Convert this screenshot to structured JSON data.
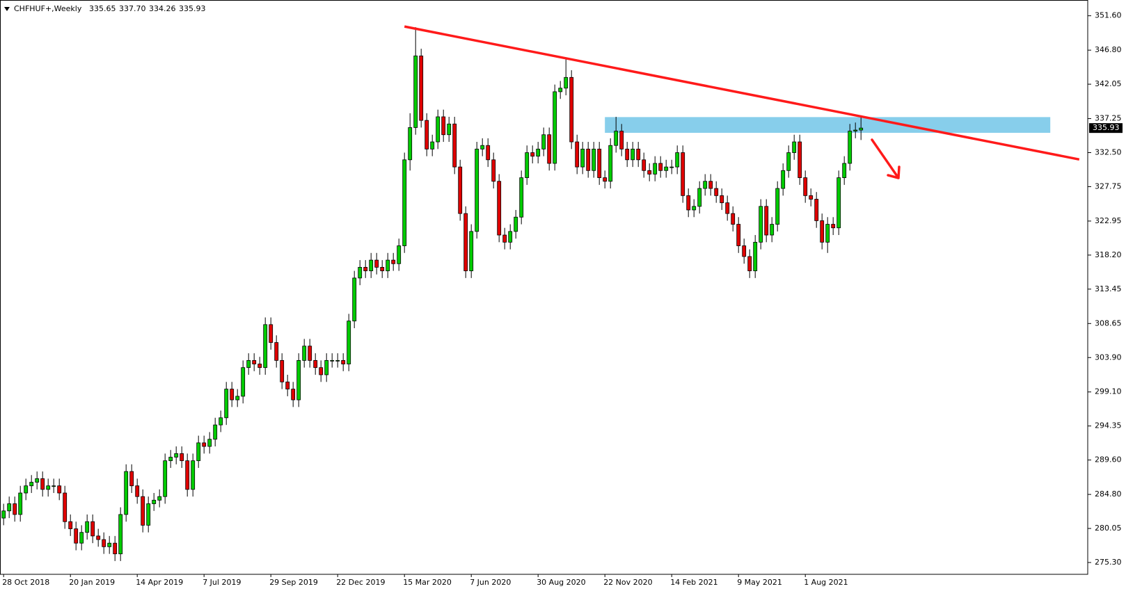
{
  "chart_data": {
    "type": "candlestick",
    "symbol": "CHFHUF+,Weekly",
    "header_values": [
      "335.65",
      "337.70",
      "334.26",
      "335.93"
    ],
    "categories": [
      "28 Oct 2018",
      null,
      null,
      null,
      null,
      null,
      null,
      null,
      null,
      null,
      null,
      null,
      "20 Jan 2019",
      null,
      null,
      null,
      null,
      null,
      null,
      null,
      null,
      null,
      null,
      null,
      "14 Apr 2019",
      null,
      null,
      null,
      null,
      null,
      null,
      null,
      null,
      null,
      null,
      null,
      "7 Jul 2019",
      null,
      null,
      null,
      null,
      null,
      null,
      null,
      null,
      null,
      null,
      null,
      "29 Sep 2019",
      null,
      null,
      null,
      null,
      null,
      null,
      null,
      null,
      null,
      null,
      null,
      "22 Dec 2019",
      null,
      null,
      null,
      null,
      null,
      null,
      null,
      null,
      null,
      null,
      null,
      "15 Mar 2020",
      null,
      null,
      null,
      null,
      null,
      null,
      null,
      null,
      null,
      null,
      null,
      "7 Jun 2020",
      null,
      null,
      null,
      null,
      null,
      null,
      null,
      null,
      null,
      null,
      null,
      "30 Aug 2020",
      null,
      null,
      null,
      null,
      null,
      null,
      null,
      null,
      null,
      null,
      null,
      "22 Nov 2020",
      null,
      null,
      null,
      null,
      null,
      null,
      null,
      null,
      null,
      null,
      null,
      "14 Feb 2021",
      null,
      null,
      null,
      null,
      null,
      null,
      null,
      null,
      null,
      null,
      null,
      "9 May 2021",
      null,
      null,
      null,
      null,
      null,
      null,
      null,
      null,
      null,
      null,
      null,
      "1 Aug 2021",
      null,
      null,
      null,
      null,
      null,
      null,
      null,
      null,
      null,
      null
    ],
    "open": [
      281.5,
      282.5,
      283.5,
      282.0,
      285.0,
      286.0,
      286.5,
      287.0,
      285.5,
      286.0,
      286.0,
      285.0,
      281.0,
      280.0,
      278.0,
      279.5,
      281.0,
      279.0,
      278.5,
      277.5,
      278.0,
      276.5,
      282.0,
      288.0,
      286.0,
      284.5,
      280.5,
      283.5,
      284.0,
      284.5,
      289.5,
      290.0,
      290.5,
      289.5,
      285.5,
      289.5,
      292.0,
      291.5,
      292.5,
      294.5,
      295.5,
      299.5,
      298.0,
      298.5,
      302.5,
      303.5,
      303.0,
      302.5,
      308.5,
      306.0,
      303.5,
      300.5,
      299.5,
      298.0,
      303.5,
      305.5,
      303.5,
      302.5,
      301.5,
      303.5,
      303.5,
      303.5,
      303.0,
      309.0,
      315.0,
      316.5,
      316.0,
      317.5,
      316.5,
      316.0,
      317.5,
      317.0,
      319.5,
      331.5,
      336.0,
      346.0,
      337.0,
      333.0,
      334.0,
      337.5,
      335.0,
      336.5,
      330.5,
      324.0,
      316.0,
      321.5,
      333.0,
      333.5,
      331.5,
      328.5,
      321.0,
      320.0,
      321.5,
      323.5,
      329.0,
      332.5,
      332.0,
      333.0,
      335.0,
      331.0,
      341.0,
      341.5,
      343.0,
      334.0,
      330.5,
      333.0,
      330.0,
      333.0,
      329.0,
      328.5,
      333.5,
      335.5,
      333.0,
      331.5,
      333.0,
      331.5,
      330.0,
      329.5,
      331.0,
      330.0,
      330.5,
      330.5,
      332.5,
      326.5,
      324.5,
      325.0,
      327.5,
      328.5,
      327.5,
      326.5,
      325.5,
      324.0,
      322.5,
      319.5,
      318.0,
      316.0,
      320.0,
      325.0,
      321.0,
      322.5,
      327.5,
      330.0,
      332.5,
      334.0,
      329.0,
      326.5,
      326.0,
      323.0,
      320.0,
      322.5,
      322.0,
      329.0,
      331.0,
      335.5,
      335.65
    ],
    "high": [
      283.5,
      284.5,
      284.5,
      286.0,
      287.0,
      287.5,
      288.0,
      288.0,
      287.0,
      287.0,
      287.0,
      286.0,
      282.0,
      281.0,
      280.5,
      282.0,
      282.0,
      280.0,
      279.5,
      279.0,
      279.0,
      283.0,
      289.0,
      289.0,
      287.0,
      285.5,
      284.5,
      285.0,
      285.5,
      290.5,
      291.0,
      291.5,
      291.5,
      290.5,
      290.5,
      293.0,
      293.0,
      293.5,
      295.5,
      296.5,
      300.5,
      300.5,
      299.5,
      303.5,
      304.5,
      304.5,
      304.0,
      309.5,
      309.5,
      307.0,
      304.5,
      301.5,
      300.5,
      304.5,
      306.5,
      306.5,
      304.5,
      303.5,
      304.5,
      304.5,
      304.5,
      304.5,
      310.0,
      316.0,
      317.5,
      317.5,
      318.5,
      318.5,
      317.5,
      318.5,
      318.5,
      320.5,
      332.5,
      338.0,
      350.0,
      347.0,
      338.0,
      335.0,
      338.5,
      338.5,
      337.5,
      337.5,
      331.5,
      325.0,
      322.5,
      334.0,
      334.5,
      334.5,
      332.5,
      329.5,
      322.0,
      322.5,
      324.5,
      330.0,
      333.5,
      333.5,
      334.0,
      336.0,
      336.0,
      342.0,
      342.5,
      345.5,
      344.0,
      335.0,
      334.0,
      334.0,
      334.0,
      334.0,
      330.0,
      334.5,
      337.5,
      336.5,
      334.0,
      334.0,
      334.0,
      332.5,
      331.0,
      332.0,
      332.0,
      331.5,
      331.5,
      333.5,
      333.5,
      327.5,
      326.0,
      328.5,
      329.5,
      329.5,
      328.5,
      327.5,
      326.5,
      325.0,
      323.5,
      320.5,
      319.0,
      321.0,
      326.0,
      326.0,
      323.5,
      328.5,
      331.0,
      333.5,
      335.0,
      335.0,
      330.0,
      327.5,
      327.0,
      324.0,
      323.5,
      323.5,
      330.0,
      332.0,
      336.5,
      336.7,
      337.7
    ],
    "low": [
      280.5,
      281.5,
      281.0,
      281.0,
      284.0,
      285.0,
      285.5,
      284.5,
      284.5,
      285.0,
      284.0,
      280.0,
      279.0,
      277.0,
      277.0,
      278.5,
      278.0,
      277.5,
      276.5,
      276.5,
      275.5,
      275.5,
      281.0,
      285.0,
      283.5,
      279.5,
      279.5,
      282.5,
      283.0,
      283.5,
      288.5,
      289.0,
      288.5,
      284.5,
      284.5,
      288.5,
      290.5,
      290.5,
      291.5,
      293.5,
      294.5,
      297.0,
      297.0,
      297.5,
      301.5,
      302.0,
      301.5,
      301.5,
      305.0,
      302.5,
      299.5,
      298.5,
      297.0,
      297.0,
      302.5,
      302.5,
      301.5,
      300.5,
      300.5,
      302.5,
      302.5,
      302.0,
      302.0,
      308.0,
      314.0,
      315.0,
      315.0,
      315.5,
      315.0,
      315.0,
      316.0,
      316.0,
      318.5,
      330.0,
      335.0,
      336.0,
      332.0,
      332.0,
      333.0,
      334.0,
      334.0,
      329.5,
      323.0,
      315.0,
      315.0,
      320.5,
      332.0,
      330.5,
      327.5,
      320.0,
      319.0,
      319.0,
      320.5,
      322.5,
      328.0,
      331.0,
      331.0,
      332.0,
      330.0,
      330.0,
      340.0,
      340.5,
      333.0,
      329.5,
      329.5,
      329.0,
      329.0,
      328.0,
      327.5,
      327.5,
      332.5,
      332.0,
      330.5,
      330.5,
      330.5,
      329.0,
      328.5,
      328.5,
      329.0,
      329.0,
      329.5,
      329.5,
      325.5,
      323.5,
      323.5,
      324.0,
      326.5,
      326.5,
      325.5,
      324.5,
      323.0,
      321.5,
      318.5,
      317.0,
      315.0,
      315.0,
      319.0,
      320.0,
      320.0,
      321.5,
      326.5,
      329.0,
      331.5,
      328.0,
      325.5,
      325.0,
      322.0,
      319.0,
      318.5,
      321.0,
      321.0,
      328.0,
      330.0,
      334.5,
      334.26
    ],
    "close": [
      282.5,
      283.5,
      282.0,
      285.0,
      286.0,
      286.5,
      287.0,
      285.5,
      286.0,
      286.0,
      285.0,
      281.0,
      280.0,
      278.0,
      279.5,
      281.0,
      279.0,
      278.5,
      277.5,
      278.0,
      276.5,
      282.0,
      288.0,
      286.0,
      284.5,
      280.5,
      283.5,
      284.0,
      284.5,
      289.5,
      290.0,
      290.5,
      289.5,
      285.5,
      289.5,
      292.0,
      291.5,
      292.5,
      294.5,
      295.5,
      299.5,
      298.0,
      298.5,
      302.5,
      303.5,
      303.0,
      302.5,
      308.5,
      306.0,
      303.5,
      300.5,
      299.5,
      298.0,
      303.5,
      305.5,
      303.5,
      302.5,
      301.5,
      303.5,
      303.5,
      303.5,
      303.0,
      309.0,
      315.0,
      316.5,
      316.0,
      317.5,
      316.5,
      316.0,
      317.5,
      317.0,
      319.5,
      331.5,
      336.0,
      346.0,
      337.0,
      333.0,
      334.0,
      337.5,
      335.0,
      336.5,
      330.5,
      324.0,
      316.0,
      321.5,
      333.0,
      333.5,
      331.5,
      328.5,
      321.0,
      320.0,
      321.5,
      323.5,
      329.0,
      332.5,
      332.0,
      333.0,
      335.0,
      331.0,
      341.0,
      341.5,
      343.0,
      334.0,
      330.5,
      333.0,
      330.0,
      333.0,
      329.0,
      328.5,
      333.5,
      335.5,
      333.0,
      331.5,
      333.0,
      331.5,
      330.0,
      329.5,
      331.0,
      330.0,
      330.5,
      330.5,
      332.5,
      326.5,
      324.5,
      325.0,
      327.5,
      328.5,
      327.5,
      326.5,
      325.5,
      324.0,
      322.5,
      319.5,
      318.0,
      316.0,
      320.0,
      325.0,
      321.0,
      322.5,
      327.5,
      330.0,
      332.5,
      334.0,
      329.0,
      326.5,
      326.0,
      323.0,
      320.0,
      322.5,
      322.0,
      329.0,
      331.0,
      335.5,
      335.65,
      335.93
    ],
    "up_color": "#00cc00",
    "down_color": "#e00000",
    "ylim": [
      273.65,
      353.8
    ],
    "yticks": [
      {
        "value": 351.6,
        "label": "351.60"
      },
      {
        "value": 346.8,
        "label": "346.80"
      },
      {
        "value": 342.05,
        "label": "342.05"
      },
      {
        "value": 337.25,
        "label": "337.25"
      },
      {
        "value": 332.5,
        "label": "332.50"
      },
      {
        "value": 327.75,
        "label": "327.75"
      },
      {
        "value": 322.95,
        "label": "322.95"
      },
      {
        "value": 318.2,
        "label": "318.20"
      },
      {
        "value": 313.45,
        "label": "313.45"
      },
      {
        "value": 308.65,
        "label": "308.65"
      },
      {
        "value": 303.9,
        "label": "303.90"
      },
      {
        "value": 299.1,
        "label": "299.10"
      },
      {
        "value": 294.35,
        "label": "294.35"
      },
      {
        "value": 289.6,
        "label": "289.60"
      },
      {
        "value": 284.8,
        "label": "284.80"
      },
      {
        "value": 280.05,
        "label": "280.05"
      },
      {
        "value": 275.3,
        "label": "275.30"
      }
    ],
    "trendline": {
      "x": [
        72,
        193.2
      ],
      "y": [
        350.1,
        331.55
      ],
      "color": "#ff1a1a"
    },
    "zone": {
      "x": [
        108,
        188
      ],
      "y": [
        335.26,
        337.46
      ],
      "color": "#87ceeb"
    }
  }
}
